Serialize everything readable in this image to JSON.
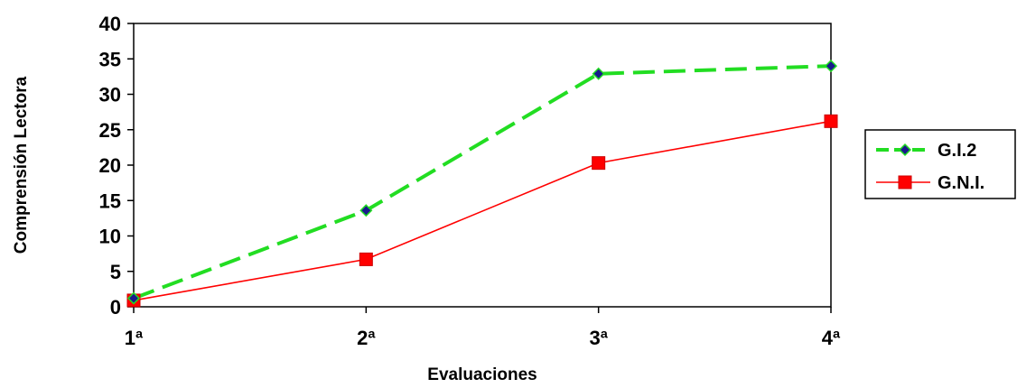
{
  "chart_data": {
    "type": "line",
    "categories": [
      "1ª",
      "2ª",
      "3ª",
      "4ª"
    ],
    "series": [
      {
        "name": "G.I.2",
        "values": [
          1.2,
          13.6,
          32.9,
          34.0
        ],
        "color": "#22dd22",
        "marker": "diamond",
        "marker_color": "#1a1a8c",
        "line_style": "dashed"
      },
      {
        "name": "G.N.I.",
        "values": [
          0.9,
          6.7,
          20.3,
          26.2
        ],
        "color": "#ff0000",
        "marker": "square",
        "marker_color": "#ff0000",
        "line_style": "solid"
      }
    ],
    "title": "",
    "xlabel": "Evaluaciones",
    "ylabel": "Comprensión Lectora",
    "ylim": [
      0,
      40
    ],
    "yticks": [
      0,
      5,
      10,
      15,
      20,
      25,
      30,
      35,
      40
    ],
    "grid": false,
    "legend_position": "right"
  }
}
